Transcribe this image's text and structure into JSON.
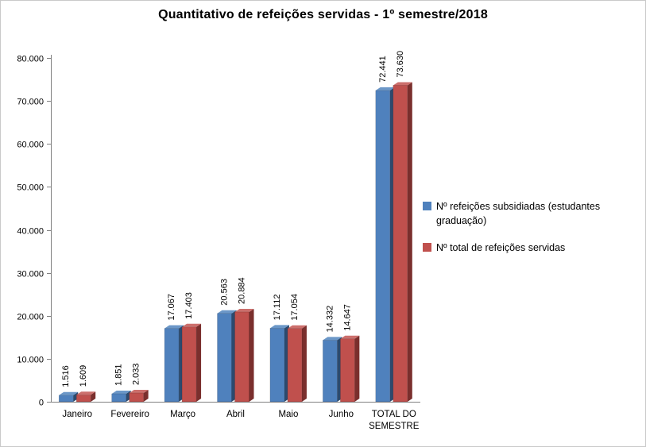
{
  "chart_data": {
    "type": "bar",
    "title": "Quantitativo de refeições servidas - 1º semestre/2018",
    "categories": [
      "Janeiro",
      "Fevereiro",
      "Março",
      "Abril",
      "Maio",
      "Junho",
      "TOTAL DO SEMESTRE"
    ],
    "series": [
      {
        "name": "Nº refeições subsidiadas (estudantes graduação)",
        "color": "#4f81bd",
        "color_top": "#6b97c8",
        "color_side": "#2c4a6e",
        "values": [
          1516,
          1851,
          17067,
          20563,
          17112,
          14332,
          72441
        ],
        "labels": [
          "1.516",
          "1.851",
          "17.067",
          "20.563",
          "17.112",
          "14.332",
          "72.441"
        ]
      },
      {
        "name": "Nº total de refeições servidas",
        "color": "#c0504d",
        "color_top": "#cc6f6c",
        "color_side": "#7a2f2d",
        "values": [
          1609,
          2033,
          17403,
          20884,
          17054,
          14647,
          73630
        ],
        "labels": [
          "1.609",
          "2.033",
          "17.403",
          "20.884",
          "17.054",
          "14.647",
          "73.630"
        ]
      }
    ],
    "ylim": [
      0,
      80000
    ],
    "yticks": [
      0,
      10000,
      20000,
      30000,
      40000,
      50000,
      60000,
      70000,
      80000
    ],
    "ytick_labels": [
      "0",
      "10.000",
      "20.000",
      "30.000",
      "40.000",
      "50.000",
      "60.000",
      "70.000",
      "80.000"
    ],
    "grid": false,
    "legend_position": "right"
  },
  "legend": {
    "items": [
      {
        "label": "Nº refeições subsidiadas (estudantes graduação)",
        "color": "#4f81bd"
      },
      {
        "label": "Nº total de refeições servidas",
        "color": "#c0504d"
      }
    ]
  }
}
